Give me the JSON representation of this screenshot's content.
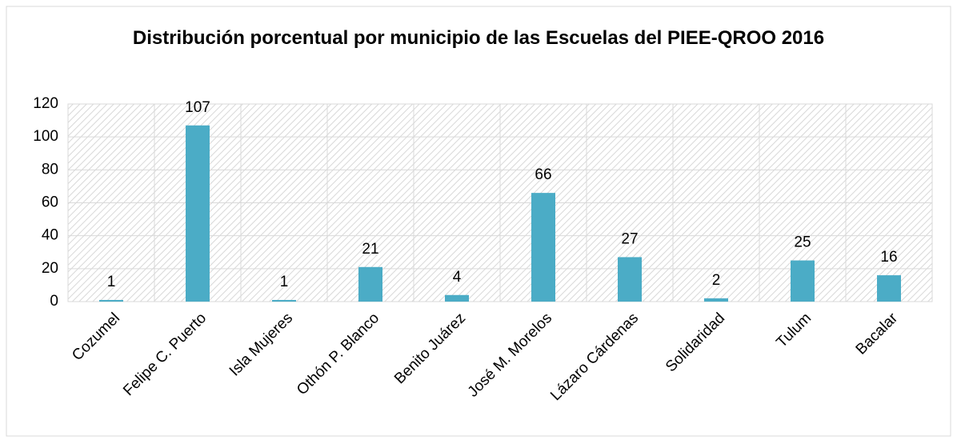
{
  "chart_data": {
    "type": "bar",
    "title": "Distribución porcentual por municipio de las Escuelas del PIEE-QROO 2016",
    "categories": [
      "Cozumel",
      "Felipe C. Puerto",
      "Isla Mujeres",
      "Othón P. Blanco",
      "Benito Juárez",
      "José M. Morelos",
      "Lázaro Cárdenas",
      "Solidaridad",
      "Tulum",
      "Bacalar"
    ],
    "values": [
      1,
      107,
      1,
      21,
      4,
      66,
      27,
      2,
      25,
      16
    ],
    "color": "#4bacc6",
    "ylim": [
      0,
      120
    ],
    "yticks": [
      0,
      20,
      40,
      60,
      80,
      100,
      120
    ],
    "grid": true
  }
}
